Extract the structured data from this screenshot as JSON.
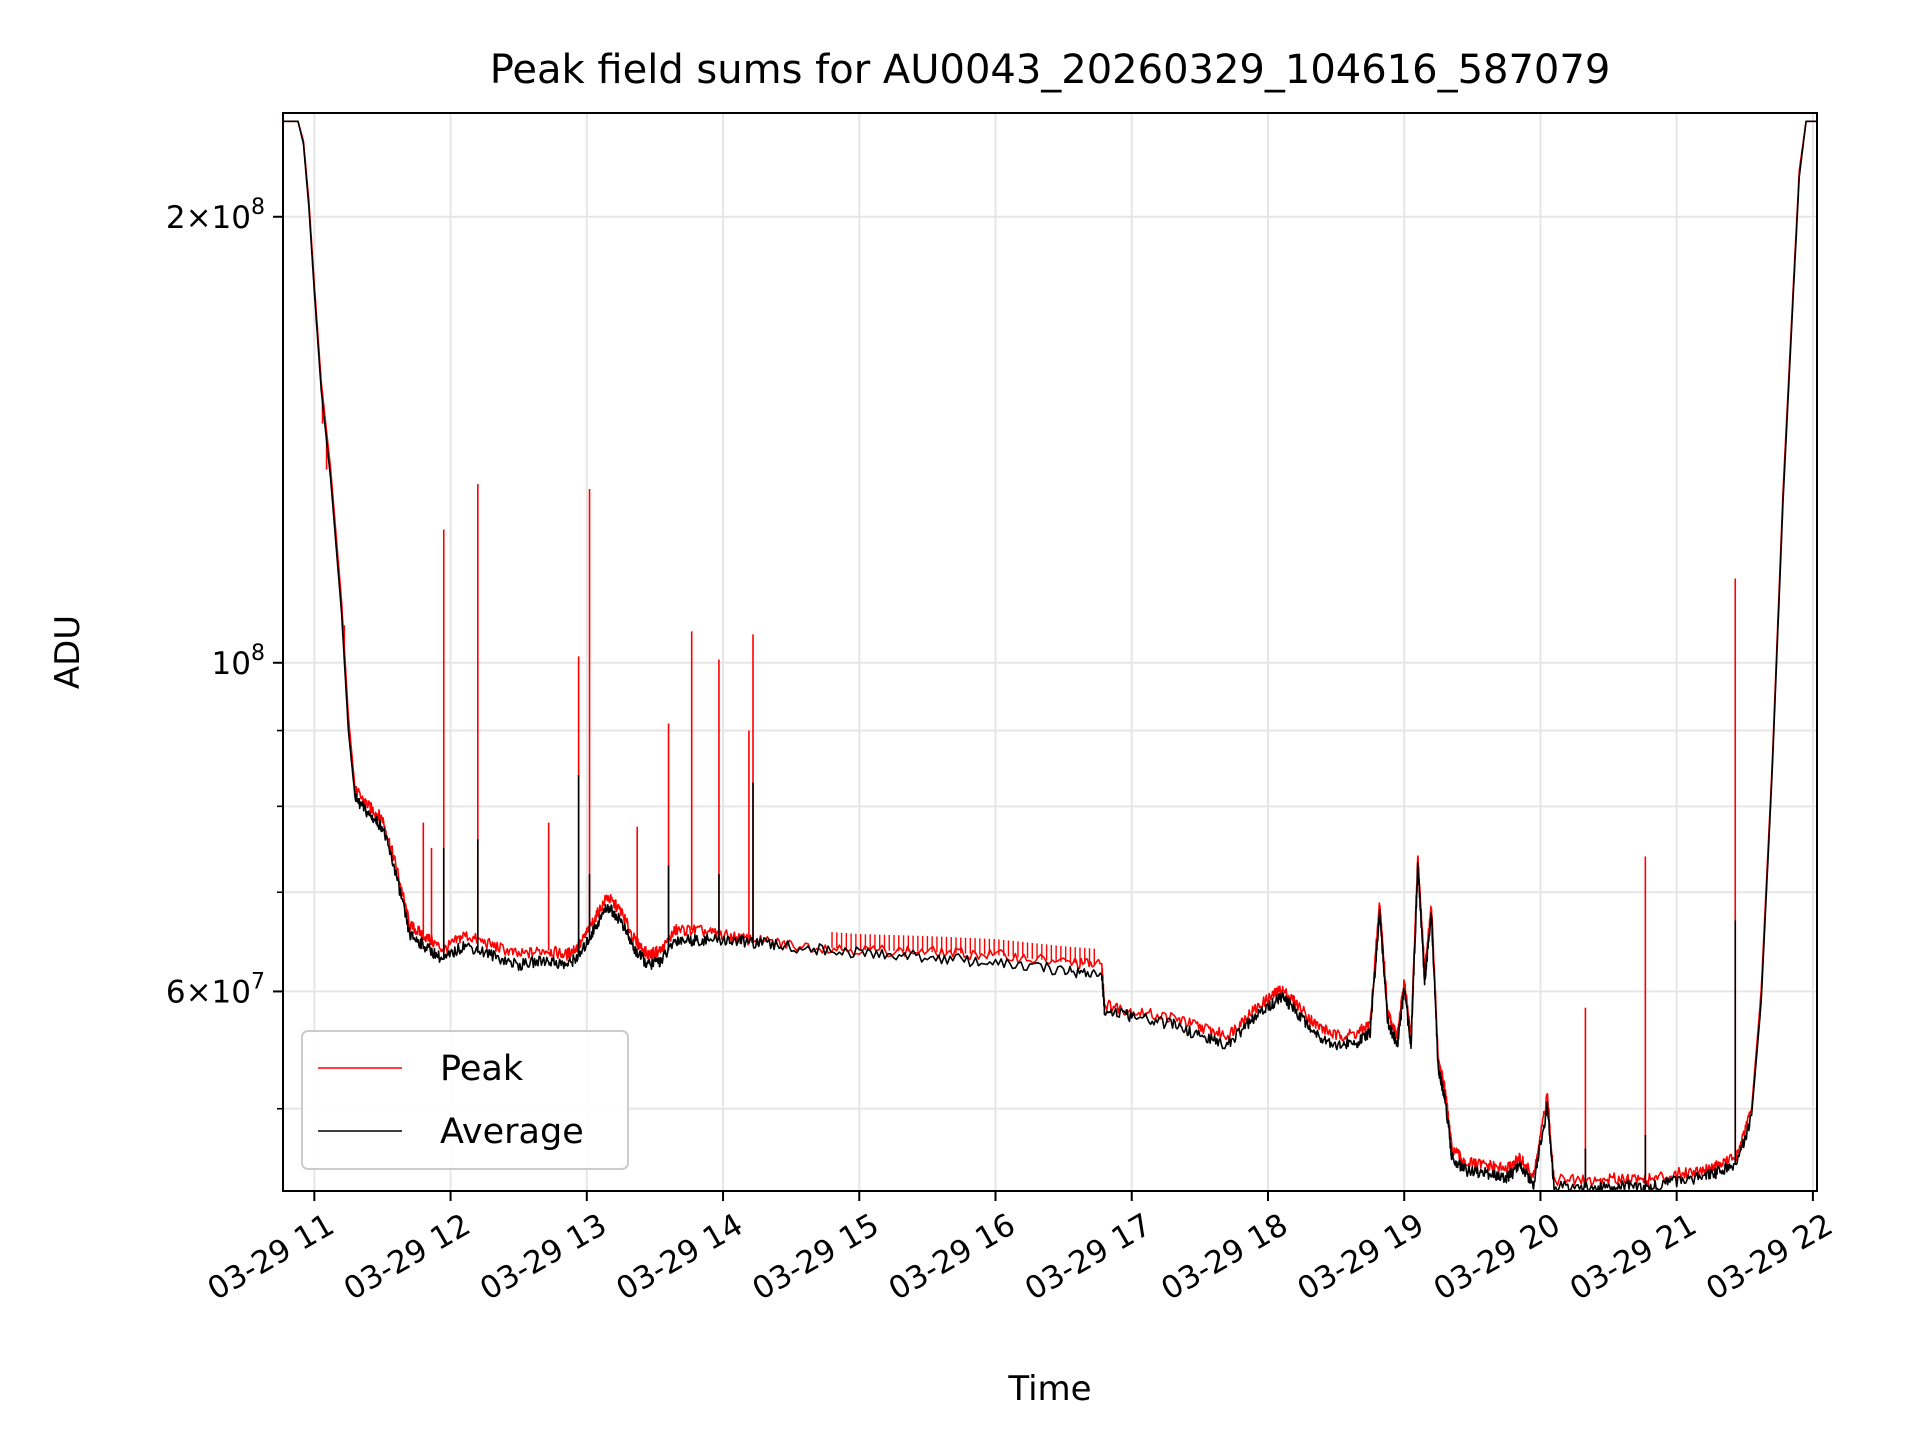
{
  "chart_data": {
    "type": "line",
    "title": "Peak field sums for AU0043_20260329_104616_587079",
    "xlabel": "Time",
    "ylabel": "ADU",
    "yscale": "log",
    "grid": true,
    "legend_position": "lower-left",
    "xlim": [
      10.77,
      22.03
    ],
    "ylim": [
      44000000,
      235000000
    ],
    "x_ticks": [
      {
        "value": 11,
        "label": "03-29 11"
      },
      {
        "value": 12,
        "label": "03-29 12"
      },
      {
        "value": 13,
        "label": "03-29 13"
      },
      {
        "value": 14,
        "label": "03-29 14"
      },
      {
        "value": 15,
        "label": "03-29 15"
      },
      {
        "value": 16,
        "label": "03-29 16"
      },
      {
        "value": 17,
        "label": "03-29 17"
      },
      {
        "value": 18,
        "label": "03-29 18"
      },
      {
        "value": 19,
        "label": "03-29 19"
      },
      {
        "value": 20,
        "label": "03-29 20"
      },
      {
        "value": 21,
        "label": "03-29 21"
      },
      {
        "value": 22,
        "label": "03-29 22"
      }
    ],
    "y_major_ticks": [
      {
        "value": 60000000,
        "mantissa": "6",
        "exponent": "7"
      },
      {
        "value": 100000000,
        "mantissa": "",
        "exponent": "8"
      },
      {
        "value": 200000000,
        "mantissa": "2",
        "exponent": "8"
      }
    ],
    "y_tick_base": "10",
    "y_tick_times": "×",
    "y_minor_ticks": [
      50000000,
      70000000,
      80000000,
      90000000
    ],
    "series": [
      {
        "name": "Peak",
        "color": "#ff0000",
        "points": [
          [
            10.77,
            232000000
          ],
          [
            10.88,
            232000000
          ],
          [
            10.92,
            225000000
          ],
          [
            10.96,
            205000000
          ],
          [
            11.0,
            180000000
          ],
          [
            11.05,
            155000000
          ],
          [
            11.12,
            135000000
          ],
          [
            11.2,
            110000000
          ],
          [
            11.25,
            92000000
          ],
          [
            11.3,
            82000000
          ],
          [
            11.4,
            80000000
          ],
          [
            11.5,
            78500000
          ],
          [
            11.6,
            73000000
          ],
          [
            11.7,
            66500000
          ],
          [
            11.8,
            65500000
          ],
          [
            11.95,
            64000000
          ],
          [
            12.1,
            65500000
          ],
          [
            12.3,
            64500000
          ],
          [
            12.5,
            63500000
          ],
          [
            12.7,
            64000000
          ],
          [
            12.85,
            63500000
          ],
          [
            12.95,
            64500000
          ],
          [
            13.05,
            67000000
          ],
          [
            13.15,
            69500000
          ],
          [
            13.25,
            68000000
          ],
          [
            13.35,
            65000000
          ],
          [
            13.45,
            63500000
          ],
          [
            13.55,
            64000000
          ],
          [
            13.65,
            66000000
          ],
          [
            13.8,
            66000000
          ],
          [
            14.0,
            65500000
          ],
          [
            14.2,
            65000000
          ],
          [
            14.5,
            64500000
          ],
          [
            15.0,
            64000000
          ],
          [
            15.5,
            63800000
          ],
          [
            16.0,
            63500000
          ],
          [
            16.5,
            62800000
          ],
          [
            16.78,
            62500000
          ],
          [
            16.8,
            58800000
          ],
          [
            17.0,
            58200000
          ],
          [
            17.3,
            57600000
          ],
          [
            17.5,
            56800000
          ],
          [
            17.7,
            56000000
          ],
          [
            17.85,
            57800000
          ],
          [
            18.0,
            59300000
          ],
          [
            18.1,
            60200000
          ],
          [
            18.2,
            59000000
          ],
          [
            18.35,
            57000000
          ],
          [
            18.5,
            56000000
          ],
          [
            18.65,
            56200000
          ],
          [
            18.75,
            57000000
          ],
          [
            18.82,
            69000000
          ],
          [
            18.88,
            58000000
          ],
          [
            18.95,
            56000000
          ],
          [
            19.0,
            61000000
          ],
          [
            19.05,
            56000000
          ],
          [
            19.1,
            74000000
          ],
          [
            19.15,
            62000000
          ],
          [
            19.2,
            68500000
          ],
          [
            19.25,
            54000000
          ],
          [
            19.3,
            51500000
          ],
          [
            19.35,
            47000000
          ],
          [
            19.45,
            46000000
          ],
          [
            19.6,
            45800000
          ],
          [
            19.75,
            45500000
          ],
          [
            19.85,
            46300000
          ],
          [
            19.95,
            45000000
          ],
          [
            20.05,
            51000000
          ],
          [
            20.1,
            44800000
          ],
          [
            20.4,
            44700000
          ],
          [
            20.6,
            44900000
          ],
          [
            20.8,
            44800000
          ],
          [
            21.0,
            45200000
          ],
          [
            21.2,
            45500000
          ],
          [
            21.3,
            45800000
          ],
          [
            21.45,
            46500000
          ],
          [
            21.55,
            50000000
          ],
          [
            21.62,
            60000000
          ],
          [
            21.7,
            85000000
          ],
          [
            21.78,
            130000000
          ],
          [
            21.85,
            175000000
          ],
          [
            21.9,
            215000000
          ],
          [
            21.95,
            232000000
          ],
          [
            22.03,
            232000000
          ]
        ],
        "spikes": [
          [
            11.06,
            145000000
          ],
          [
            11.09,
            135000000
          ],
          [
            11.22,
            106000000
          ],
          [
            11.8,
            78000000
          ],
          [
            11.86,
            75000000
          ],
          [
            11.95,
            123000000
          ],
          [
            12.2,
            132000000
          ],
          [
            12.72,
            78000000
          ],
          [
            12.94,
            101000000
          ],
          [
            13.02,
            131000000
          ],
          [
            13.37,
            77500000
          ],
          [
            13.6,
            91000000
          ],
          [
            13.77,
            105000000
          ],
          [
            13.97,
            100500000
          ],
          [
            14.19,
            90000000
          ],
          [
            14.22,
            104500000
          ],
          [
            20.33,
            58500000
          ],
          [
            20.77,
            74000000
          ],
          [
            21.43,
            114000000
          ]
        ]
      },
      {
        "name": "Average",
        "color": "#000000",
        "points": [
          [
            10.77,
            232000000
          ],
          [
            10.88,
            232000000
          ],
          [
            10.92,
            224000000
          ],
          [
            10.96,
            203000000
          ],
          [
            11.0,
            178000000
          ],
          [
            11.05,
            153000000
          ],
          [
            11.12,
            133000000
          ],
          [
            11.2,
            108000000
          ],
          [
            11.25,
            90000000
          ],
          [
            11.3,
            81000000
          ],
          [
            11.4,
            79000000
          ],
          [
            11.5,
            77500000
          ],
          [
            11.6,
            72000000
          ],
          [
            11.7,
            65500000
          ],
          [
            11.8,
            64500000
          ],
          [
            11.95,
            63000000
          ],
          [
            12.1,
            64500000
          ],
          [
            12.3,
            63500000
          ],
          [
            12.5,
            62500000
          ],
          [
            12.7,
            63000000
          ],
          [
            12.85,
            62500000
          ],
          [
            12.95,
            63500000
          ],
          [
            13.05,
            66000000
          ],
          [
            13.15,
            68500000
          ],
          [
            13.25,
            67000000
          ],
          [
            13.35,
            64000000
          ],
          [
            13.45,
            62500000
          ],
          [
            13.55,
            63000000
          ],
          [
            13.65,
            65000000
          ],
          [
            13.8,
            65000000
          ],
          [
            14.0,
            65000000
          ],
          [
            14.2,
            64800000
          ],
          [
            14.5,
            64300000
          ],
          [
            15.0,
            63700000
          ],
          [
            15.5,
            63300000
          ],
          [
            16.0,
            62700000
          ],
          [
            16.5,
            62000000
          ],
          [
            16.78,
            61600000
          ],
          [
            16.8,
            58300000
          ],
          [
            17.0,
            57700000
          ],
          [
            17.3,
            57000000
          ],
          [
            17.5,
            56000000
          ],
          [
            17.7,
            55200000
          ],
          [
            17.85,
            57000000
          ],
          [
            18.0,
            58600000
          ],
          [
            18.1,
            59500000
          ],
          [
            18.2,
            58300000
          ],
          [
            18.35,
            56200000
          ],
          [
            18.5,
            55200000
          ],
          [
            18.65,
            55400000
          ],
          [
            18.75,
            56200000
          ],
          [
            18.82,
            68000000
          ],
          [
            18.88,
            57200000
          ],
          [
            18.95,
            55200000
          ],
          [
            19.0,
            60200000
          ],
          [
            19.05,
            55200000
          ],
          [
            19.1,
            73000000
          ],
          [
            19.15,
            61000000
          ],
          [
            19.2,
            67500000
          ],
          [
            19.25,
            53200000
          ],
          [
            19.3,
            50800000
          ],
          [
            19.35,
            46400000
          ],
          [
            19.45,
            45400000
          ],
          [
            19.6,
            45200000
          ],
          [
            19.75,
            44900000
          ],
          [
            19.85,
            45700000
          ],
          [
            19.95,
            44500000
          ],
          [
            20.05,
            50200000
          ],
          [
            20.1,
            44300000
          ],
          [
            20.4,
            44200000
          ],
          [
            20.6,
            44400000
          ],
          [
            20.8,
            44300000
          ],
          [
            21.0,
            44700000
          ],
          [
            21.2,
            45000000
          ],
          [
            21.3,
            45300000
          ],
          [
            21.45,
            46000000
          ],
          [
            21.55,
            49500000
          ],
          [
            21.62,
            59000000
          ],
          [
            21.7,
            84000000
          ],
          [
            21.78,
            128000000
          ],
          [
            21.85,
            173000000
          ],
          [
            21.9,
            213000000
          ],
          [
            21.95,
            232000000
          ],
          [
            22.03,
            232000000
          ]
        ],
        "spikes": [
          [
            11.95,
            75000000
          ],
          [
            12.2,
            76000000
          ],
          [
            12.94,
            84000000
          ],
          [
            13.02,
            72000000
          ],
          [
            13.6,
            73000000
          ],
          [
            13.97,
            72000000
          ],
          [
            14.22,
            83000000
          ],
          [
            20.33,
            47000000
          ],
          [
            20.77,
            48000000
          ],
          [
            21.43,
            67000000
          ]
        ]
      }
    ]
  }
}
